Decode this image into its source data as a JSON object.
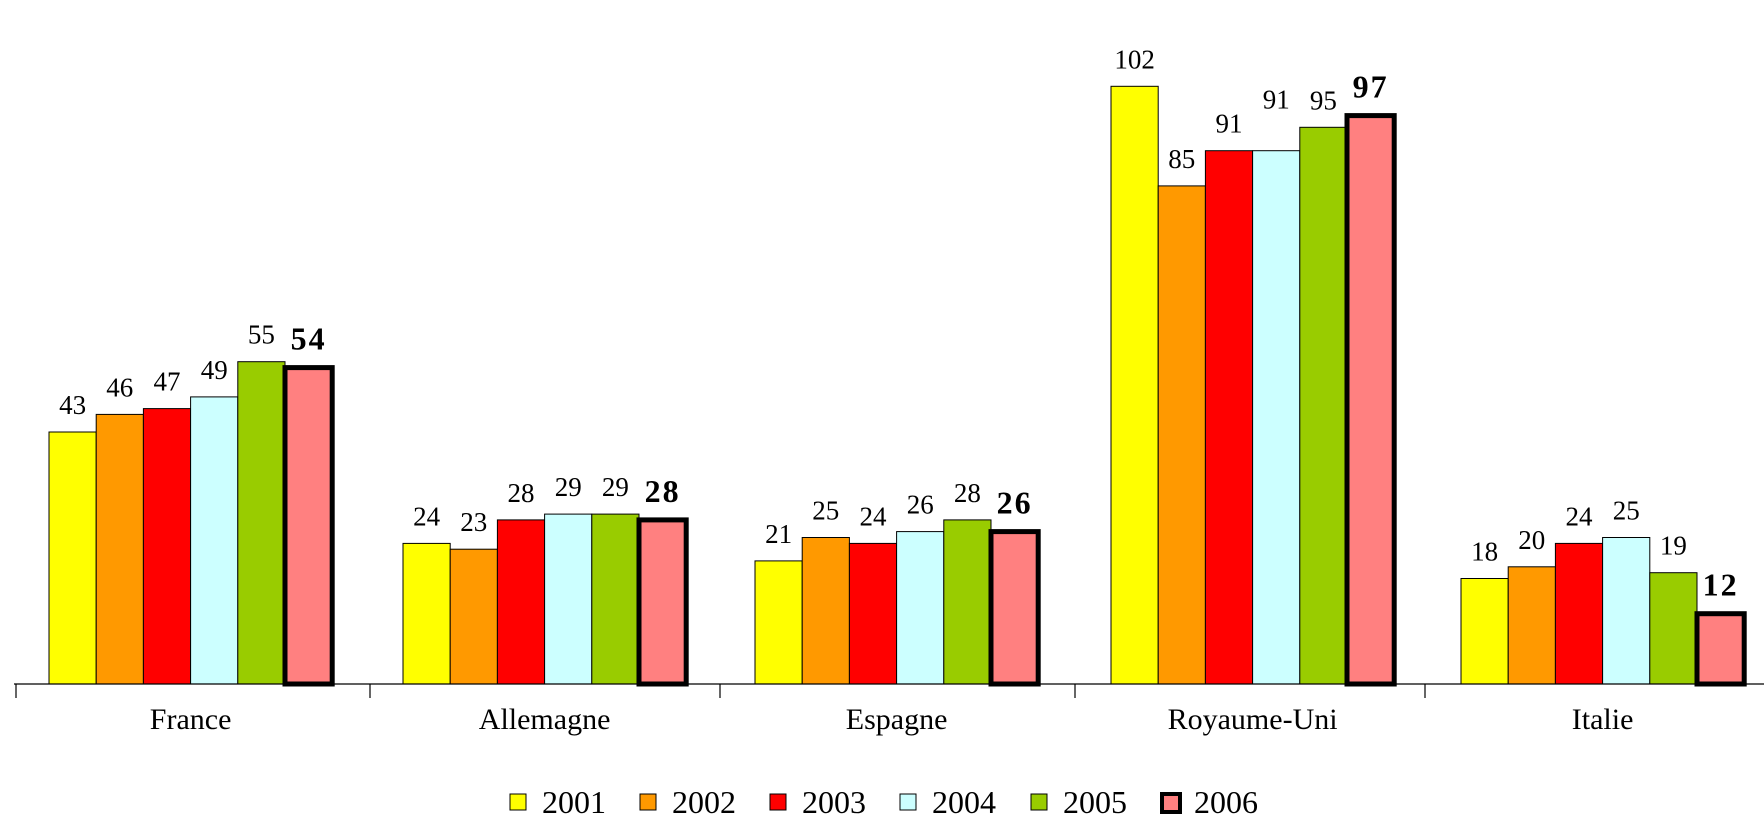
{
  "chart_data": {
    "type": "bar",
    "categories": [
      "France",
      "Allemagne",
      "Espagne",
      "Royaume-Uni",
      "Italie"
    ],
    "series": [
      {
        "name": "2001",
        "color": "#FFFF00",
        "values": [
          43,
          24,
          21,
          102,
          18
        ]
      },
      {
        "name": "2002",
        "color": "#FF9900",
        "values": [
          46,
          23,
          25,
          85,
          20
        ]
      },
      {
        "name": "2003",
        "color": "#FF0000",
        "values": [
          47,
          28,
          24,
          91,
          24
        ]
      },
      {
        "name": "2004",
        "color": "#CCFFFF",
        "values": [
          49,
          29,
          26,
          91,
          25
        ]
      },
      {
        "name": "2005",
        "color": "#99CC00",
        "values": [
          55,
          29,
          28,
          95,
          19
        ]
      },
      {
        "name": "2006",
        "color": "#FF8080",
        "values": [
          54,
          28,
          26,
          97,
          12
        ],
        "highlight": true
      }
    ],
    "title": "",
    "xlabel": "",
    "ylabel": "",
    "ylim": [
      0,
      105
    ],
    "grid": false,
    "legend_position": "bottom"
  }
}
